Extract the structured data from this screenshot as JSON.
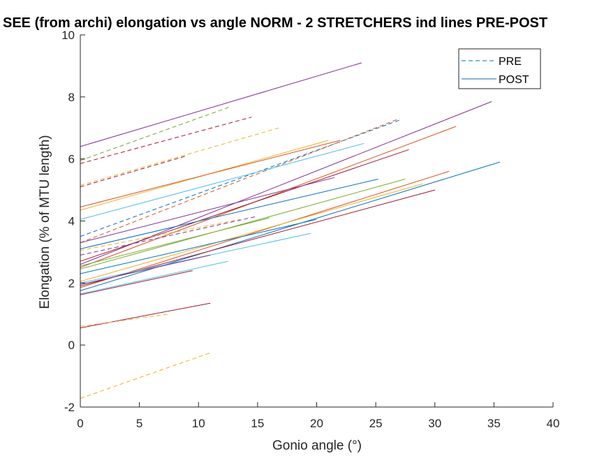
{
  "chart_data": {
    "type": "line",
    "title": "SEE (from archi) elongation vs angle NORM - 2 STRETCHERS ind lines PRE-POST",
    "xlabel": "Gonio angle (°)",
    "ylabel": "Elongation (% of MTU length)",
    "xlim": [
      0,
      40
    ],
    "ylim": [
      -2,
      10
    ],
    "xticks": [
      0,
      5,
      10,
      15,
      20,
      25,
      30,
      35,
      40
    ],
    "yticks": [
      -2,
      0,
      2,
      4,
      6,
      8,
      10
    ],
    "grid": false,
    "legend": {
      "position": "top-right",
      "entries": [
        {
          "label": "PRE",
          "style": "dashed",
          "color": "#0072BD"
        },
        {
          "label": "POST",
          "style": "solid",
          "color": "#0072BD"
        }
      ]
    },
    "series": [
      {
        "style": "solid",
        "color": "#7E2F8E",
        "x": [
          0,
          23.8
        ],
        "y": [
          6.4,
          9.1
        ]
      },
      {
        "style": "dashed",
        "color": "#77AC30",
        "x": [
          0,
          12.8
        ],
        "y": [
          5.95,
          7.7
        ]
      },
      {
        "style": "dashed",
        "color": "#A2142F",
        "x": [
          0,
          14.5
        ],
        "y": [
          5.85,
          7.35
        ]
      },
      {
        "style": "dashed",
        "color": "#EDB120",
        "x": [
          0,
          16.8
        ],
        "y": [
          5.15,
          7.0
        ]
      },
      {
        "style": "dashed",
        "color": "#A2142F",
        "x": [
          0,
          9.0
        ],
        "y": [
          5.1,
          6.1
        ]
      },
      {
        "style": "dashed",
        "color": "#0072BD",
        "x": [
          0,
          27.0
        ],
        "y": [
          3.5,
          7.25
        ]
      },
      {
        "style": "dashed",
        "color": "#D95319",
        "x": [
          0,
          27.0
        ],
        "y": [
          3.3,
          7.3
        ]
      },
      {
        "style": "solid",
        "color": "#EDB120",
        "x": [
          0,
          21.0
        ],
        "y": [
          4.35,
          6.6
        ]
      },
      {
        "style": "solid",
        "color": "#D95319",
        "x": [
          0,
          22.0
        ],
        "y": [
          4.45,
          6.6
        ]
      },
      {
        "style": "solid",
        "color": "#4DBEEE",
        "x": [
          0,
          24.0
        ],
        "y": [
          4.05,
          6.5
        ]
      },
      {
        "style": "solid",
        "color": "#7E2F8E",
        "x": [
          0,
          34.8
        ],
        "y": [
          2.6,
          7.85
        ]
      },
      {
        "style": "solid",
        "color": "#D95319",
        "x": [
          0,
          31.8
        ],
        "y": [
          2.5,
          7.05
        ]
      },
      {
        "style": "solid",
        "color": "#A2142F",
        "x": [
          0,
          27.8
        ],
        "y": [
          2.7,
          6.3
        ]
      },
      {
        "style": "solid",
        "color": "#0072BD",
        "x": [
          0,
          25.2
        ],
        "y": [
          3.1,
          5.35
        ]
      },
      {
        "style": "solid",
        "color": "#0072BD",
        "x": [
          0,
          35.5
        ],
        "y": [
          1.75,
          5.9
        ]
      },
      {
        "style": "solid",
        "color": "#D95319",
        "x": [
          0,
          31.2
        ],
        "y": [
          1.85,
          5.6
        ]
      },
      {
        "style": "solid",
        "color": "#EDB120",
        "x": [
          0,
          29.0
        ],
        "y": [
          2.05,
          5.2
        ]
      },
      {
        "style": "solid",
        "color": "#77AC30",
        "x": [
          0,
          27.5
        ],
        "y": [
          2.45,
          5.35
        ]
      },
      {
        "style": "solid",
        "color": "#A2142F",
        "x": [
          0,
          30.0
        ],
        "y": [
          1.9,
          5.0
        ]
      },
      {
        "style": "solid",
        "color": "#7E2F8E",
        "x": [
          0,
          21.5
        ],
        "y": [
          3.3,
          5.4
        ]
      },
      {
        "style": "solid",
        "color": "#4DBEEE",
        "x": [
          0,
          19.5
        ],
        "y": [
          2.0,
          3.6
        ]
      },
      {
        "style": "solid",
        "color": "#77AC30",
        "x": [
          0,
          16.0
        ],
        "y": [
          2.55,
          4.1
        ]
      },
      {
        "style": "solid",
        "color": "#0072BD",
        "x": [
          0,
          20.0
        ],
        "y": [
          2.3,
          4.05
        ]
      },
      {
        "style": "dashed",
        "color": "#7E2F8E",
        "x": [
          0,
          15.0
        ],
        "y": [
          2.9,
          4.15
        ]
      },
      {
        "style": "dashed",
        "color": "#EDB120",
        "x": [
          0,
          13.5
        ],
        "y": [
          3.05,
          4.05
        ]
      },
      {
        "style": "solid",
        "color": "#4DBEEE",
        "x": [
          0,
          12.5
        ],
        "y": [
          1.65,
          2.7
        ]
      },
      {
        "style": "solid",
        "color": "#7E2F8E",
        "x": [
          0,
          11.0
        ],
        "y": [
          1.95,
          2.9
        ]
      },
      {
        "style": "solid",
        "color": "#A2142F",
        "x": [
          0,
          9.5
        ],
        "y": [
          1.62,
          2.4
        ]
      },
      {
        "style": "solid",
        "color": "#A2142F",
        "x": [
          0,
          11.0
        ],
        "y": [
          0.55,
          1.35
        ]
      },
      {
        "style": "dashed",
        "color": "#EDB120",
        "x": [
          0,
          7.5
        ],
        "y": [
          0.6,
          1.0
        ]
      },
      {
        "style": "dashed",
        "color": "#EDB120",
        "x": [
          0,
          11.0
        ],
        "y": [
          -1.72,
          -0.25
        ]
      }
    ]
  }
}
